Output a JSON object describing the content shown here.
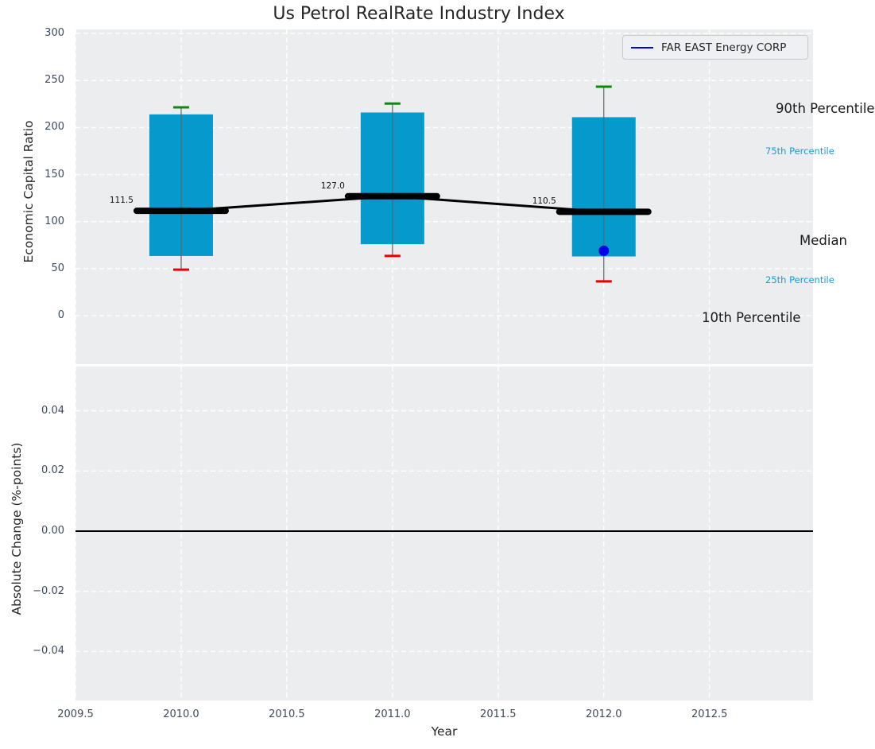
{
  "title": "Us Petrol RealRate Industry Index",
  "legend": {
    "label": "FAR EAST Energy CORP",
    "line_color": "#0000e6"
  },
  "annotations": {
    "p90": "90th Percentile",
    "p75": "75th Percentile",
    "median": "Median",
    "p25": "25th Percentile",
    "p10": "10th Percentile"
  },
  "colors": {
    "axes_bg": "#ebedef",
    "grid": "#ffffff",
    "box_fill": "#0599cc",
    "whisker": "#636363",
    "cap_high": "#0a8c0a",
    "cap_low": "#e60000",
    "median_line": "#000000",
    "company_point": "#0000e6",
    "zero_line": "#000000",
    "tick_text": "#3d4b5e",
    "percentile_text": "#1a9cd3"
  },
  "chart_data": {
    "type": "boxplot",
    "title": "Us Petrol RealRate Industry Index",
    "xlabel": "Year",
    "xlim": [
      2009.5,
      2012.99
    ],
    "xticks": [
      {
        "v": 2009.5,
        "label": "2009.5"
      },
      {
        "v": 2010.0,
        "label": "2010.0"
      },
      {
        "v": 2010.5,
        "label": "2010.5"
      },
      {
        "v": 2011.0,
        "label": "2011.0"
      },
      {
        "v": 2011.5,
        "label": "2011.5"
      },
      {
        "v": 2012.0,
        "label": "2012.0"
      },
      {
        "v": 2012.5,
        "label": "2012.5"
      }
    ],
    "top_panel": {
      "ylabel": "Economic Capital Ratio",
      "ylim": [
        -51.5,
        304.3
      ],
      "yticks": [
        {
          "v": 0,
          "label": "0"
        },
        {
          "v": 50,
          "label": "50"
        },
        {
          "v": 100,
          "label": "100"
        },
        {
          "v": 150,
          "label": "150"
        },
        {
          "v": 200,
          "label": "200"
        },
        {
          "v": 250,
          "label": "250"
        },
        {
          "v": 300,
          "label": "300"
        }
      ],
      "boxes": [
        {
          "year": 2010,
          "p10": 49.0,
          "p25": 63.5,
          "median": 111.5,
          "p75": 214.0,
          "p90": 221.5
        },
        {
          "year": 2011,
          "p10": 63.5,
          "p25": 76.0,
          "median": 127.0,
          "p75": 216.0,
          "p90": 225.5
        },
        {
          "year": 2012,
          "p10": 36.5,
          "p25": 63.0,
          "median": 110.5,
          "p75": 211.0,
          "p90": 243.5
        }
      ],
      "median_labels": [
        "111.5",
        "127.0",
        "110.5"
      ],
      "median_line_series": {
        "x": [
          2010,
          2011,
          2012
        ],
        "y": [
          111.5,
          127.0,
          110.5
        ]
      },
      "company_point": {
        "name": "FAR EAST Energy CORP",
        "year": 2012,
        "value": 69
      }
    },
    "bottom_panel": {
      "ylabel": "Absolute Change (%-points)",
      "ylim": [
        -0.0563,
        0.0547
      ],
      "yticks": [
        {
          "v": 0.04,
          "label": "0.04"
        },
        {
          "v": 0.02,
          "label": "0.02"
        },
        {
          "v": 0.0,
          "label": "0.00"
        },
        {
          "v": -0.02,
          "label": "−0.02"
        },
        {
          "v": -0.04,
          "label": "−0.04"
        }
      ],
      "zero_line": 0.0,
      "series": []
    },
    "grid": {
      "on": true,
      "style": "dashed-white"
    },
    "legend_position": "upper right"
  }
}
